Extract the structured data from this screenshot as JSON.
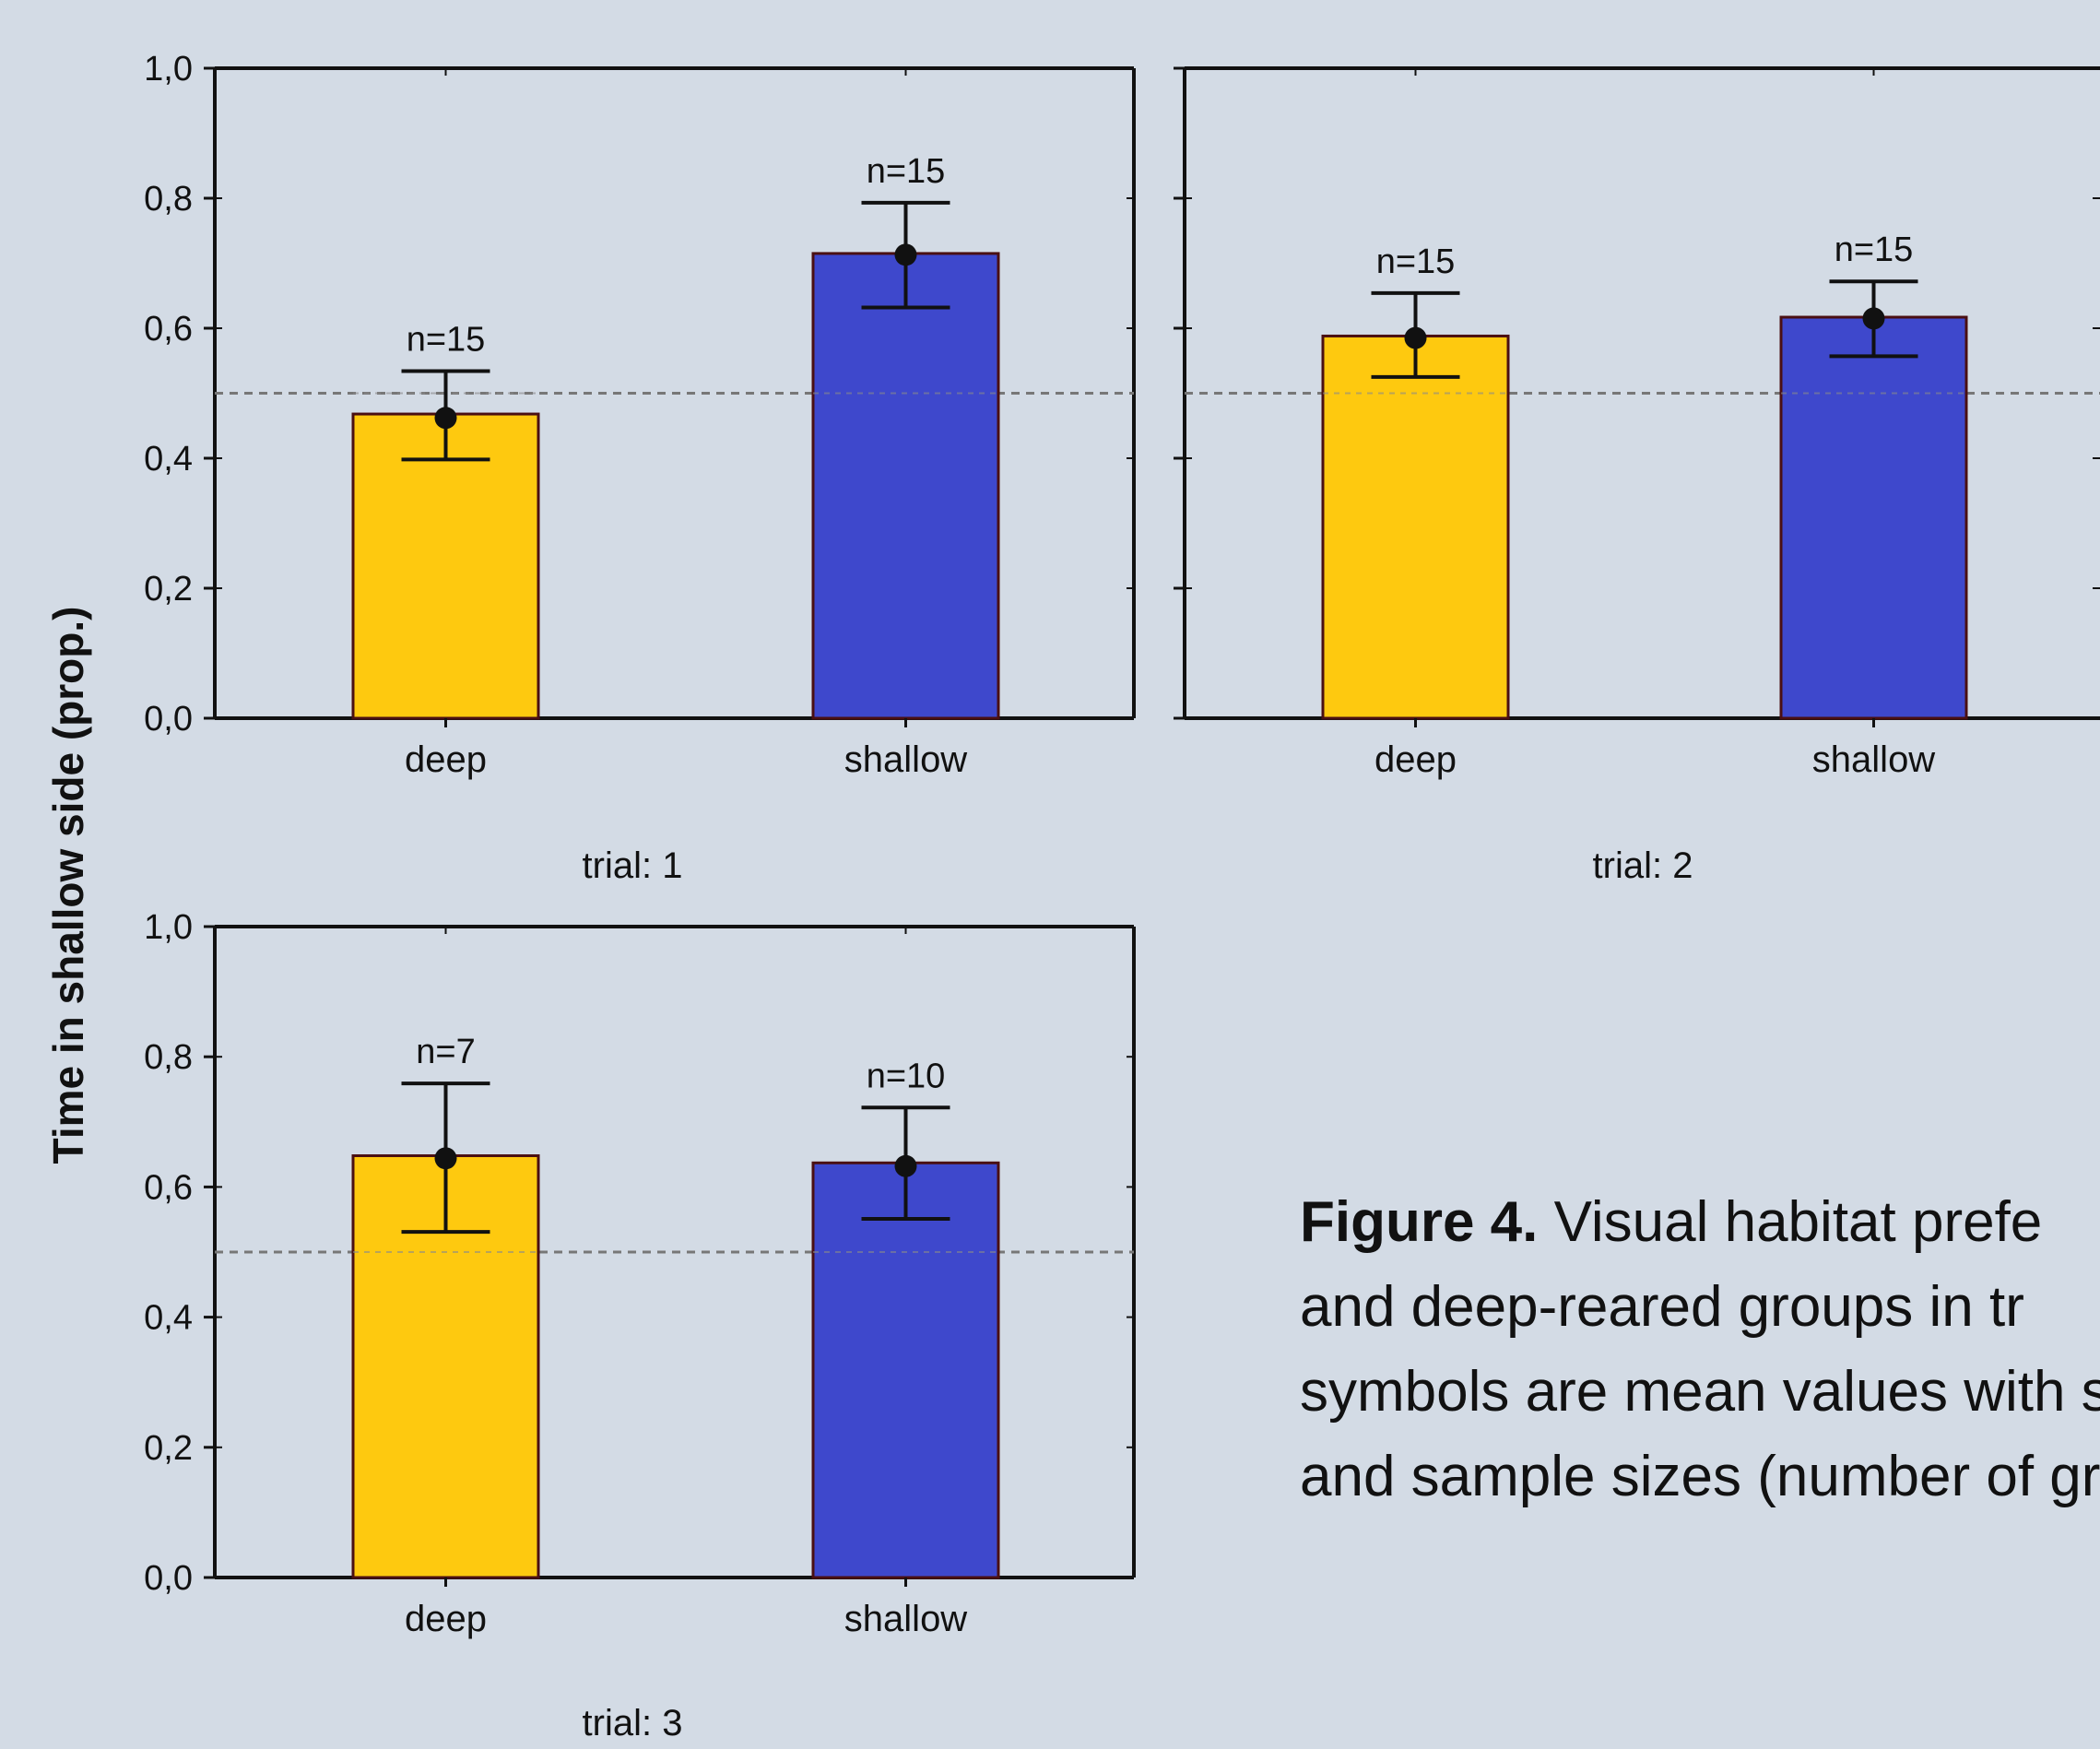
{
  "figure": {
    "ylabel": "Time in shallow side (prop.)",
    "caption_label": "Figure 4.",
    "caption_lines": [
      "Visual habitat prefe",
      "and deep-reared groups in tr",
      "symbols are mean values with s",
      "and sample sizes (number of gro"
    ]
  },
  "colors": {
    "deep": "#fec90f",
    "shallow": "#3e48cc",
    "bar_edge": "#4a0f12"
  },
  "chart_data": [
    {
      "type": "bar",
      "title": "trial: 1",
      "categories": [
        "deep",
        "shallow"
      ],
      "values": [
        0.468,
        0.715
      ],
      "means": [
        0.462,
        0.713
      ],
      "error_low": [
        0.398,
        0.632
      ],
      "error_high": [
        0.534,
        0.793
      ],
      "n_labels": [
        "n=15",
        "n=15"
      ],
      "reference_line": 0.5,
      "ylim": [
        0,
        1
      ],
      "yticks": [
        "0,0",
        "0,2",
        "0,4",
        "0,6",
        "0,8",
        "1,0"
      ],
      "xlabel": "",
      "ylabel": "Time in shallow side (prop.)"
    },
    {
      "type": "bar",
      "title": "trial: 2",
      "categories": [
        "deep",
        "shallow"
      ],
      "values": [
        0.588,
        0.617
      ],
      "means": [
        0.585,
        0.615
      ],
      "error_low": [
        0.525,
        0.557
      ],
      "error_high": [
        0.654,
        0.672
      ],
      "n_labels": [
        "n=15",
        "n=15"
      ],
      "reference_line": 0.5,
      "ylim": [
        0,
        1
      ],
      "yticks": [],
      "xlabel": "",
      "ylabel": ""
    },
    {
      "type": "bar",
      "title": "trial: 3",
      "categories": [
        "deep",
        "shallow"
      ],
      "values": [
        0.648,
        0.637
      ],
      "means": [
        0.644,
        0.632
      ],
      "error_low": [
        0.531,
        0.551
      ],
      "error_high": [
        0.759,
        0.722
      ],
      "n_labels": [
        "n=7",
        "n=10"
      ],
      "reference_line": 0.5,
      "ylim": [
        0,
        1
      ],
      "yticks": [
        "0,0",
        "0,2",
        "0,4",
        "0,6",
        "0,8",
        "1,0"
      ],
      "xlabel": "",
      "ylabel": ""
    }
  ]
}
